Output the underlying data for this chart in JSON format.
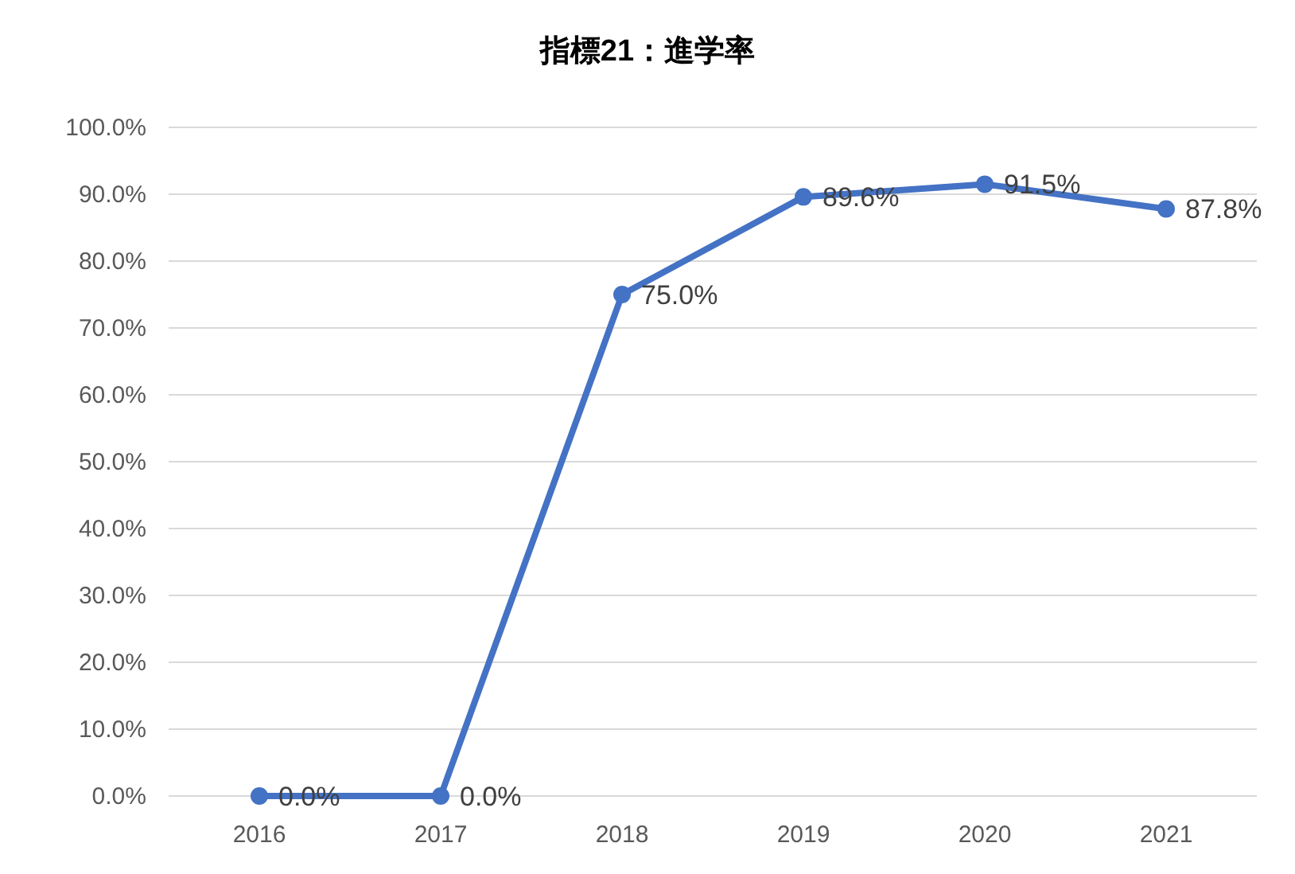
{
  "chart_data": {
    "type": "line",
    "title": "指標21：進学率",
    "categories": [
      "2016",
      "2017",
      "2018",
      "2019",
      "2020",
      "2021"
    ],
    "values": [
      0,
      0,
      75.0,
      89.6,
      91.5,
      87.8
    ],
    "value_labels": [
      "0.0%",
      "0.0%",
      "75.0%",
      "89.6%",
      "91.5%",
      "87.8%"
    ],
    "color": "#4472c4",
    "marker": "circle",
    "grid": "y",
    "ylim": [
      0,
      100
    ],
    "yticks": [
      {
        "value": 0,
        "label": "0.0%"
      },
      {
        "value": 10,
        "label": "10.0%"
      },
      {
        "value": 20,
        "label": "20.0%"
      },
      {
        "value": 30,
        "label": "30.0%"
      },
      {
        "value": 40,
        "label": "40.0%"
      },
      {
        "value": 50,
        "label": "50.0%"
      },
      {
        "value": 60,
        "label": "60.0%"
      },
      {
        "value": 70,
        "label": "70.0%"
      },
      {
        "value": 80,
        "label": "80.0%"
      },
      {
        "value": 90,
        "label": "90.0%"
      },
      {
        "value": 100,
        "label": "100.0%"
      }
    ]
  }
}
